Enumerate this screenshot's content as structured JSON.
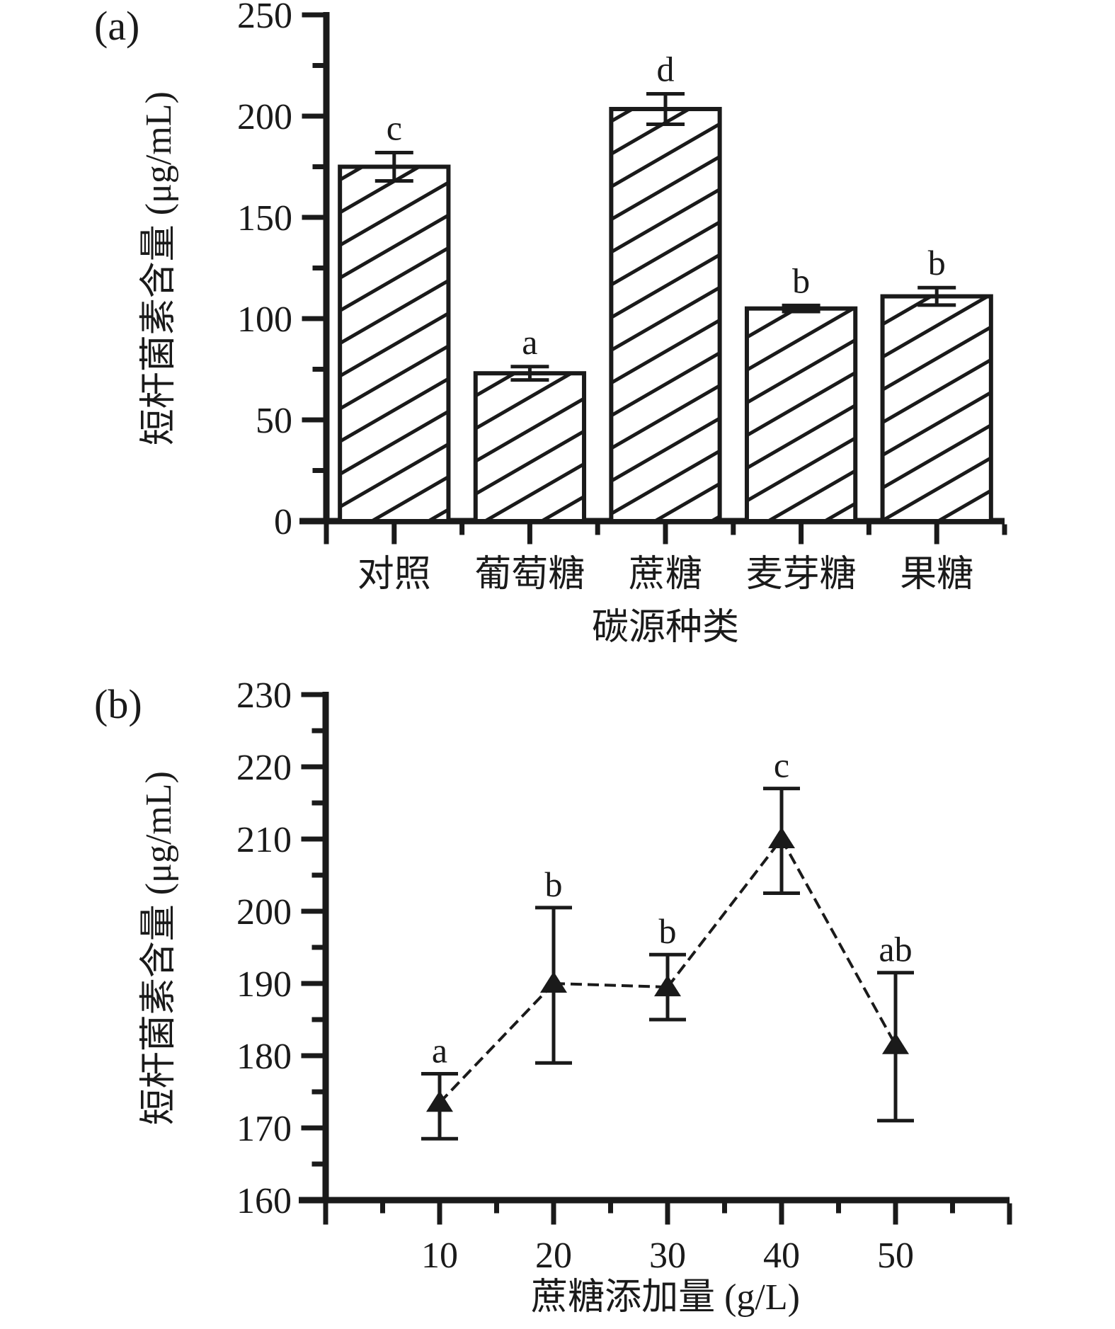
{
  "figure": {
    "panels": {
      "a": {
        "label": "(a)",
        "y_title": "短杆菌素含量 (μg/mL)",
        "x_title": "碳源种类"
      },
      "b": {
        "label": "(b)",
        "y_title": "短杆菌素含量 (μg/mL)",
        "x_title": "蔗糖添加量 (g/L)"
      }
    },
    "ink_color": "#1a1a1a",
    "background": "#ffffff"
  },
  "chart_data": [
    {
      "panel": "a",
      "type": "bar",
      "title": "",
      "categories": [
        "对照",
        "葡萄糖",
        "蔗糖",
        "麦芽糖",
        "果糖"
      ],
      "values": [
        175,
        73,
        203.5,
        105,
        111
      ],
      "error": [
        7,
        3.3,
        7.5,
        1.5,
        4.3
      ],
      "sig_letters": [
        "c",
        "a",
        "d",
        "b",
        "b"
      ],
      "xlabel": "碳源种类",
      "ylabel": "短杆菌素含量 (μg/mL)",
      "ylim": [
        0,
        250
      ],
      "ytick_step": 50,
      "yminor_step": 25,
      "bar_fill": "hatched-diagonal",
      "grid": "off",
      "legend": "none",
      "color": "#1a1a1a"
    },
    {
      "panel": "b",
      "type": "line",
      "title": "",
      "x": [
        10,
        20,
        30,
        40,
        50
      ],
      "y": [
        173.5,
        190,
        189.5,
        210,
        181.5
      ],
      "y_err_low": [
        168.5,
        179,
        185,
        202.5,
        171
      ],
      "y_err_high": [
        177.5,
        200.5,
        194,
        217,
        191.5
      ],
      "sig_letters": [
        "a",
        "b",
        "b",
        "c",
        "ab"
      ],
      "xlabel": "蔗糖添加量 (g/L)",
      "ylabel": "短杆菌素含量 (μg/mL)",
      "xlim": [
        0,
        60
      ],
      "xtick_step": 10,
      "xminor_step": 5,
      "xtick_labels": [
        "10",
        "20",
        "30",
        "40",
        "50"
      ],
      "ylim": [
        160,
        230
      ],
      "ytick_step": 10,
      "yminor_step": 5,
      "marker": "filled-triangle-up",
      "line_style": "dashed",
      "grid": "off",
      "legend": "none",
      "color": "#1a1a1a"
    }
  ]
}
